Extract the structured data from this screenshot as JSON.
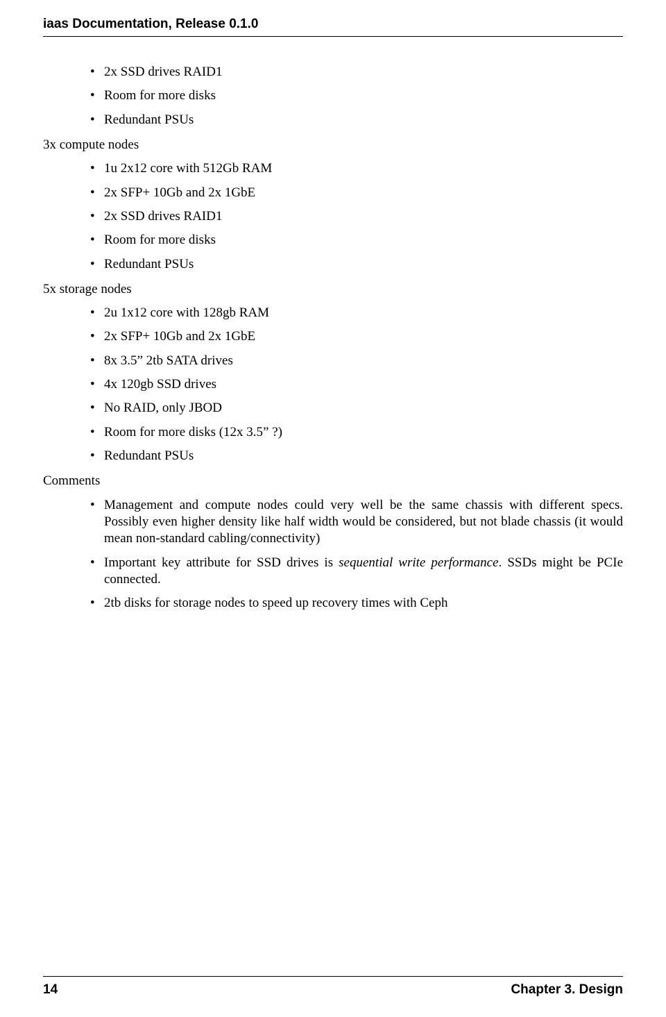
{
  "header": {
    "text": "iaas Documentation, Release 0.1.0"
  },
  "s1": {
    "items": {
      "0": "2x SSD drives RAID1",
      "1": "Room for more disks",
      "2": "Redundant PSUs"
    }
  },
  "s2": {
    "heading": "3x compute nodes",
    "items": {
      "0": "1u 2x12 core with 512Gb RAM",
      "1": "2x SFP+ 10Gb and 2x 1GbE",
      "2": "2x SSD drives RAID1",
      "3": "Room for more disks",
      "4": "Redundant PSUs"
    }
  },
  "s3": {
    "heading": "5x storage nodes",
    "items": {
      "0": "2u 1x12 core with 128gb RAM",
      "1": "2x SFP+ 10Gb and 2x 1GbE",
      "2": "8x 3.5” 2tb SATA drives",
      "3": "4x 120gb SSD drives",
      "4": "No RAID, only JBOD",
      "5": "Room for more disks (12x 3.5” ?)",
      "6": "Redundant PSUs"
    }
  },
  "s4": {
    "heading": "Comments",
    "items": {
      "0_full": "Management and compute nodes could very well be the same chassis with different specs.  Possibly even higher density like half width would be considered, but not blade chassis (it would mean non-standard cabling/connectivity)",
      "1_pre": "Important key attribute for SSD drives is ",
      "1_em": "sequential write performance",
      "1_post": ". SSDs might be PCIe connected.",
      "2": "2tb disks for storage nodes to speed up recovery times with Ceph"
    }
  },
  "footer": {
    "page_number": "14",
    "chapter": "Chapter 3.  Design"
  }
}
